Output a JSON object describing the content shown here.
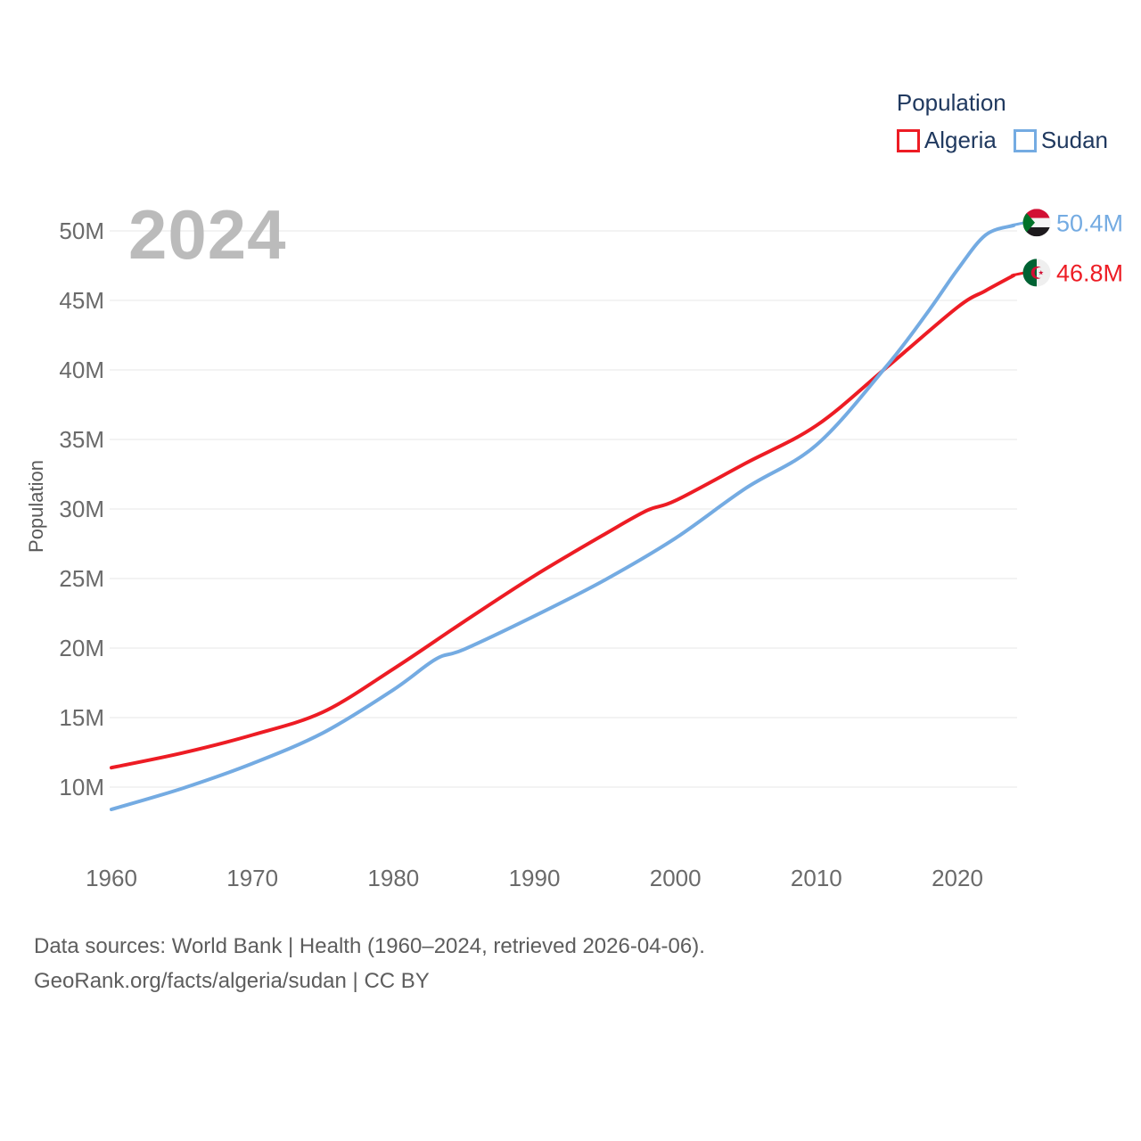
{
  "watermark_year": "2024",
  "y_axis_title": "Population",
  "legend": {
    "title": "Population",
    "items": [
      {
        "label": "Algeria",
        "color": "#ed1c24"
      },
      {
        "label": "Sudan",
        "color": "#74abe2"
      }
    ]
  },
  "footer": {
    "line1": "Data sources: World Bank | Health (1960–2024, retrieved 2026-04-06).",
    "line2": "GeoRank.org/facts/algeria/sudan | CC BY"
  },
  "colors": {
    "algeria_red": "#ed1c24",
    "sudan_blue": "#74abe2",
    "legend_navy": "#20395f",
    "tick_gray": "#6a6a6a",
    "grid_gray": "#ececec",
    "watermark_gray": "#bbbbbb",
    "footer_gray": "#5d5d5d",
    "axis_title_gray": "#595959"
  },
  "chart_data": {
    "type": "line",
    "title": "Population",
    "xlabel": "",
    "ylabel": "Population",
    "grid": true,
    "legend_position": "top-right",
    "xlim": [
      1960,
      2024
    ],
    "ylim": [
      8,
      52
    ],
    "x_ticks": [
      {
        "value": 1960,
        "label": "1960"
      },
      {
        "value": 1970,
        "label": "1970"
      },
      {
        "value": 1980,
        "label": "1980"
      },
      {
        "value": 1990,
        "label": "1990"
      },
      {
        "value": 2000,
        "label": "2000"
      },
      {
        "value": 2010,
        "label": "2010"
      },
      {
        "value": 2020,
        "label": "2020"
      }
    ],
    "y_ticks": [
      {
        "value": 10,
        "label": "10M"
      },
      {
        "value": 15,
        "label": "15M"
      },
      {
        "value": 20,
        "label": "20M"
      },
      {
        "value": 25,
        "label": "25M"
      },
      {
        "value": 30,
        "label": "30M"
      },
      {
        "value": 35,
        "label": "35M"
      },
      {
        "value": 40,
        "label": "40M"
      },
      {
        "value": 45,
        "label": "45M"
      },
      {
        "value": 50,
        "label": "50M"
      }
    ],
    "series": [
      {
        "name": "Algeria",
        "color": "#ed1c24",
        "flag": "algeria",
        "end_label": "46.8M",
        "end_value": 46.8,
        "points": [
          [
            1960,
            11.4
          ],
          [
            1965,
            12.45
          ],
          [
            1970,
            13.75
          ],
          [
            1975,
            15.4
          ],
          [
            1980,
            18.5
          ],
          [
            1985,
            21.9
          ],
          [
            1990,
            25.2
          ],
          [
            1995,
            28.2
          ],
          [
            1998,
            29.9
          ],
          [
            2000,
            30.6
          ],
          [
            2005,
            33.3
          ],
          [
            2010,
            36.0
          ],
          [
            2015,
            40.2
          ],
          [
            2020,
            44.5
          ],
          [
            2022,
            45.7
          ],
          [
            2024,
            46.8
          ]
        ]
      },
      {
        "name": "Sudan",
        "color": "#74abe2",
        "flag": "sudan",
        "end_label": "50.4M",
        "end_value": 50.4,
        "points": [
          [
            1960,
            8.4
          ],
          [
            1965,
            9.9
          ],
          [
            1970,
            11.7
          ],
          [
            1975,
            13.9
          ],
          [
            1980,
            17.0
          ],
          [
            1983,
            19.2
          ],
          [
            1985,
            19.9
          ],
          [
            1990,
            22.3
          ],
          [
            1995,
            24.9
          ],
          [
            2000,
            27.9
          ],
          [
            2005,
            31.5
          ],
          [
            2010,
            34.6
          ],
          [
            2015,
            40.3
          ],
          [
            2018,
            44.3
          ],
          [
            2020,
            47.2
          ],
          [
            2022,
            49.7
          ],
          [
            2024,
            50.4
          ]
        ]
      }
    ]
  }
}
